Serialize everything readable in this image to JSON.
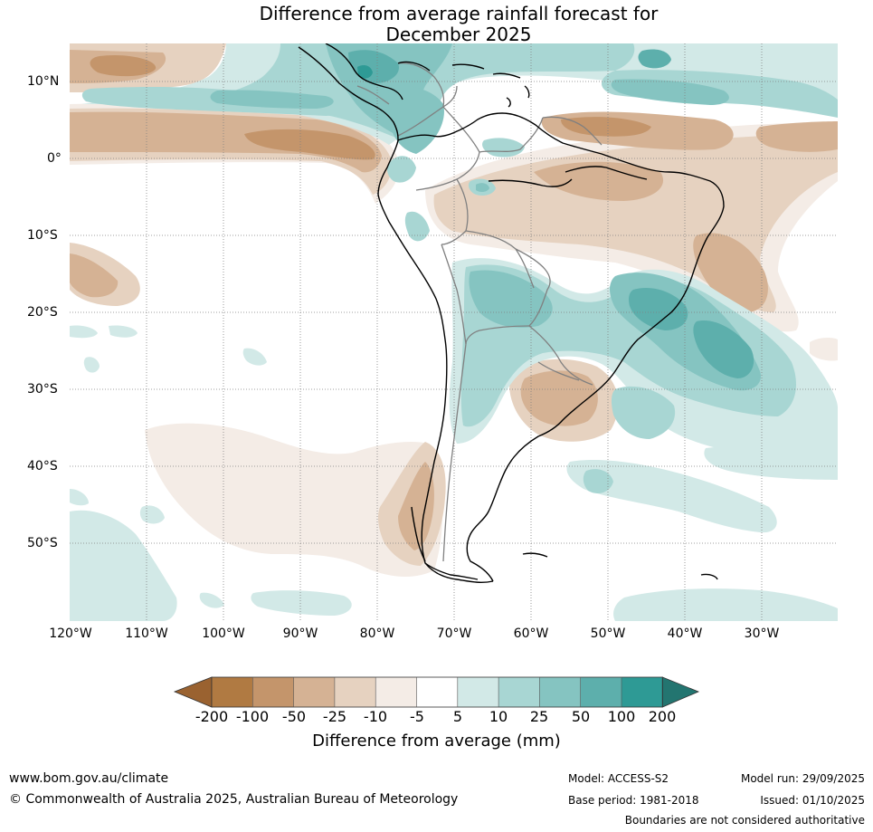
{
  "title": {
    "line1": "Difference from average rainfall forecast for",
    "line2": "December 2025"
  },
  "map": {
    "lat_labels": [
      "10°N",
      "0°",
      "10°S",
      "20°S",
      "30°S",
      "40°S",
      "50°S"
    ],
    "lon_labels": [
      "120°W",
      "110°W",
      "100°W",
      "90°W",
      "80°W",
      "70°W",
      "60°W",
      "50°W",
      "40°W",
      "30°W"
    ],
    "colors": {
      "dry_200": "#9a6230",
      "dry_100": "#b07a42",
      "dry_50": "#c4956b",
      "dry_25": "#d5b294",
      "dry_10": "#e6d2c0",
      "dry_5": "#f4ece6",
      "neutral": "#ffffff",
      "wet_5": "#d2e9e7",
      "wet_10": "#a8d6d3",
      "wet_25": "#85c4c1",
      "wet_50": "#5dafac",
      "wet_100": "#2e9a95",
      "wet_200": "#237570",
      "coast": "#000000",
      "borders": "#808080",
      "gridlines": "#808080"
    }
  },
  "colorbar": {
    "tick_labels": [
      "-200",
      "-100",
      "-50",
      "-25",
      "-10",
      "-5",
      "5",
      "10",
      "25",
      "50",
      "100",
      "200"
    ],
    "title": "Difference from average (mm)"
  },
  "footer": {
    "website": "www.bom.gov.au/climate",
    "copyright": "© Commonwealth of Australia 2025, Australian Bureau of Meteorology",
    "model": "Model: ACCESS-S2",
    "base_period": "Base period: 1981-2018",
    "model_run": "Model run: 29/09/2025",
    "issued": "Issued: 01/10/2025",
    "boundaries_note": "Boundaries are not considered authoritative"
  }
}
